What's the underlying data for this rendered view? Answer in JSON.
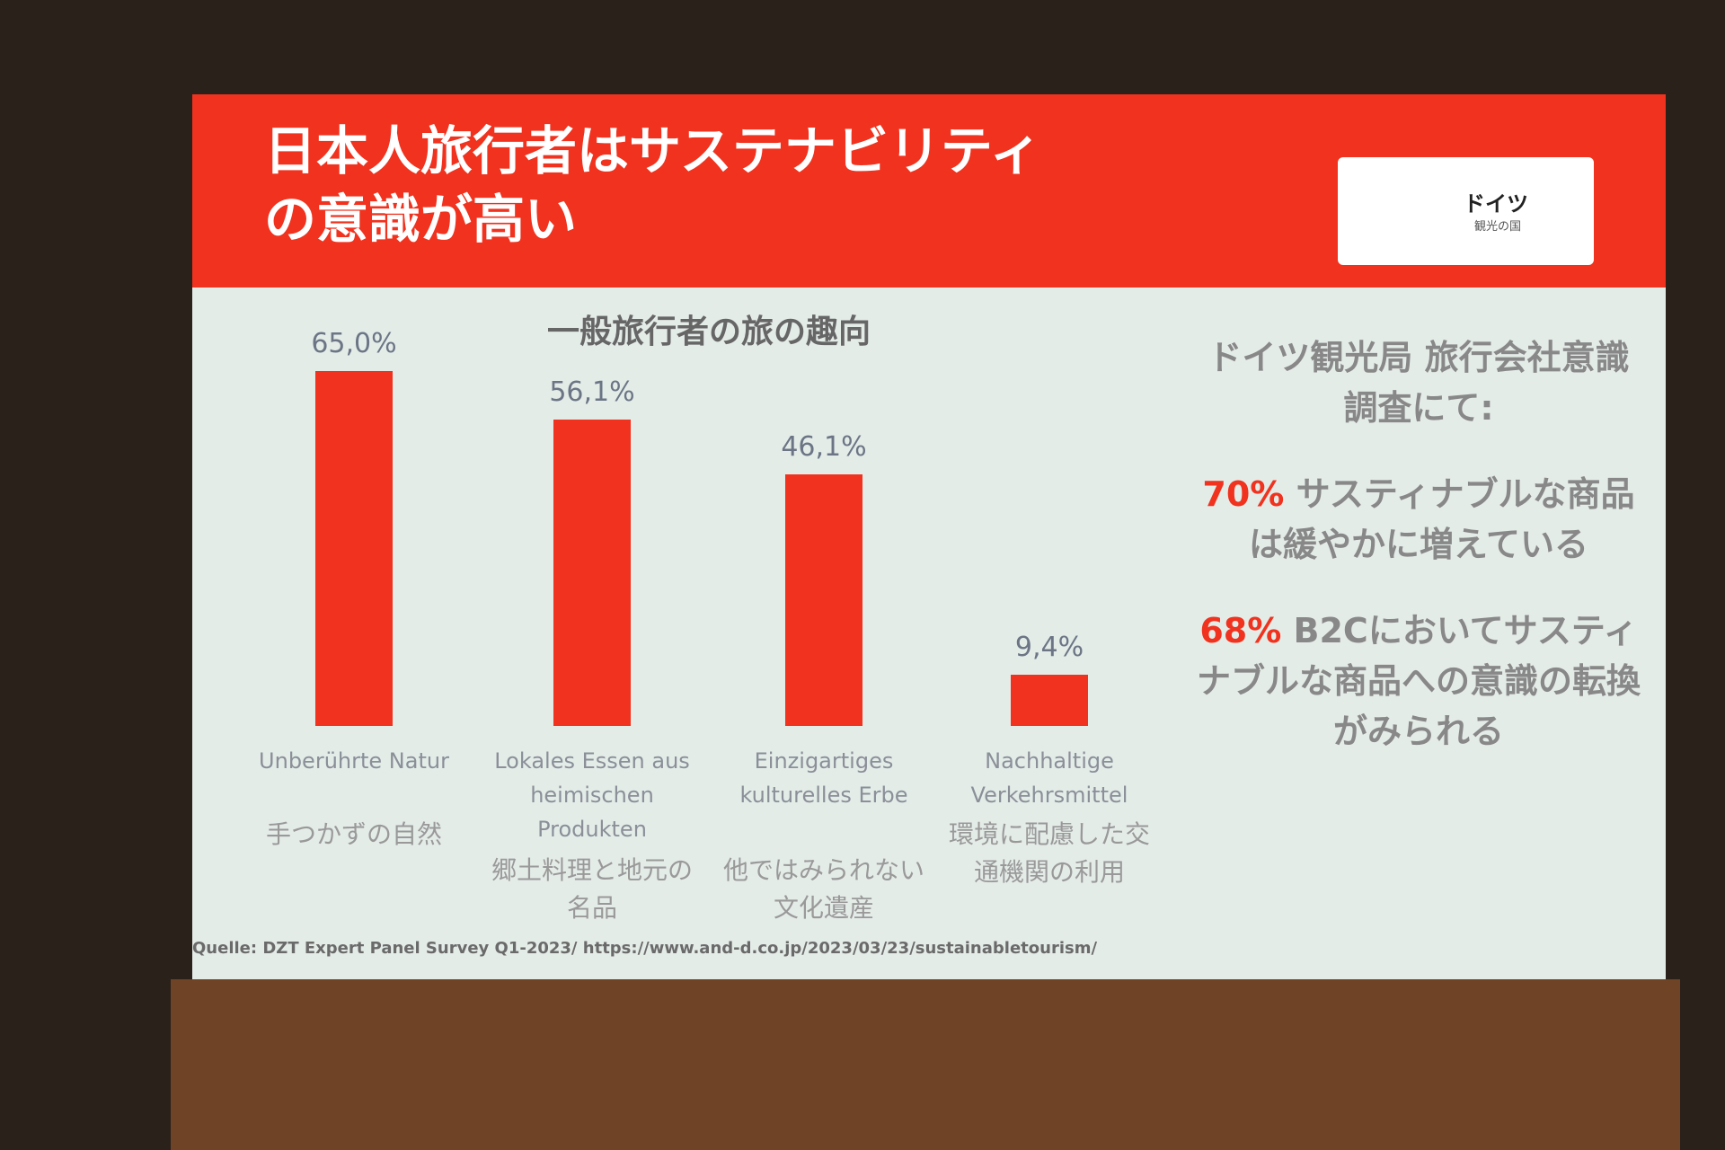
{
  "slide": {
    "title": "日本人旅行者はサステナビリティの意識が高い",
    "logo": {
      "text": "ドイツ",
      "subtext": "観光の国"
    },
    "source": "Quelle: DZT Expert Panel Survey Q1-2023/ https://www.and-d.co.jp/2023/03/23/sustainabletourism/"
  },
  "side": {
    "heading": "ドイツ観光局 旅行会社意識調査にて:",
    "items": [
      {
        "figure": "70%",
        "text": "サスティナブルな商品は緩やかに増えている"
      },
      {
        "figure": "68%",
        "text": "B2Cにおいてサスティナブルな商品への意識の転換がみられる"
      }
    ]
  },
  "chart_data": {
    "type": "bar",
    "title": "一般旅行者の旅の趣向",
    "categories": [
      "Unberührte Natur",
      "Lokales Essen aus heimischen Produkten",
      "Einzigartiges kulturelles Erbe",
      "Nachhaltige Verkehrsmittel"
    ],
    "category_translations": [
      "手つかずの自然",
      "郷土料理と地元の名品",
      "他ではみられない文化遺産",
      "環境に配慮した交通機関の利用"
    ],
    "values": [
      65.0,
      56.1,
      46.1,
      9.4
    ],
    "value_labels": [
      "65,0%",
      "56,1%",
      "46,1%",
      "9,4%"
    ],
    "color": "#f0321e"
  }
}
